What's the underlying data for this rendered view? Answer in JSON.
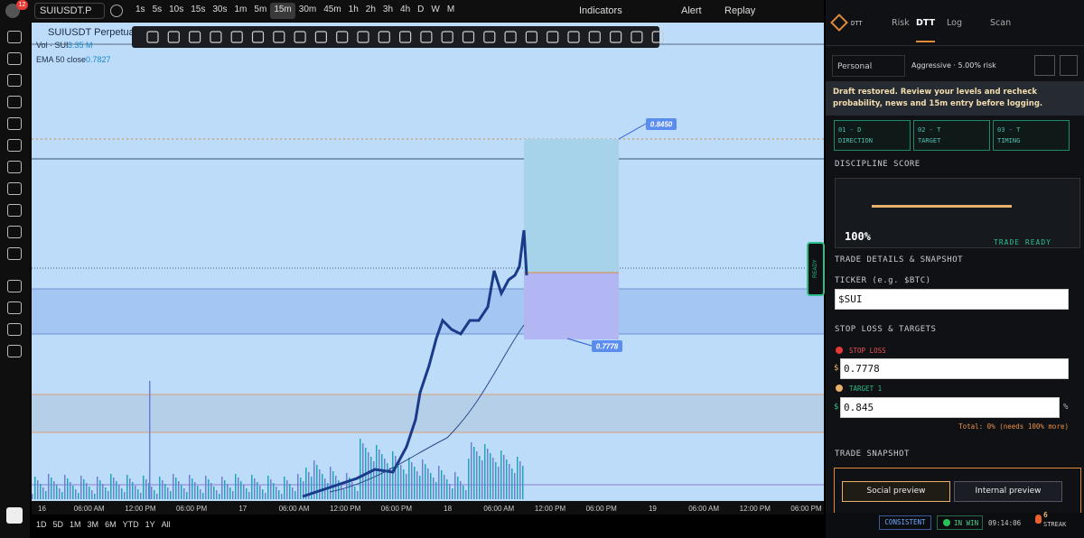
{
  "toolbar": {
    "symbol": "SUIUSDT.P",
    "badge": "12",
    "intervals": [
      "1s",
      "5s",
      "10s",
      "15s",
      "30s",
      "1m",
      "5m",
      "15m",
      "30m",
      "45m",
      "1h",
      "2h",
      "3h",
      "4h",
      "D",
      "W",
      "M"
    ],
    "active_interval": "15m",
    "indicators": "Indicators",
    "alert": "Alert",
    "replay": "Replay"
  },
  "legend": {
    "title": "SUIUSDT Perpetual C",
    "vol_label": "Vol · SUI",
    "vol_value": "3.35 M",
    "ema_label": "EMA 50 close",
    "ema_value": "0.7827"
  },
  "chart": {
    "target_label": "0.8450",
    "stop_label": "0.7778"
  },
  "time_axis": [
    "16",
    "06:00 AM",
    "12:00 PM",
    "06:00 PM",
    "17",
    "06:00 AM",
    "12:00 PM",
    "06:00 PM",
    "18",
    "06:00 AM",
    "12:00 PM",
    "06:00 PM",
    "19",
    "06:00 AM",
    "12:00 PM",
    "06:00 PM"
  ],
  "ranges": [
    "1D",
    "5D",
    "1M",
    "3M",
    "6M",
    "YTD",
    "1Y",
    "All"
  ],
  "panel": {
    "brand": "DTT",
    "tabs": [
      "Risk",
      "DTT",
      "Log",
      "Scan"
    ],
    "active_tab": "DTT",
    "profile": "Personal",
    "risk": "Aggressive · 5.00% risk",
    "banner": "Draft restored. Review your levels and recheck probability, news and 15m entry before logging.",
    "steps": [
      {
        "code": "01 - D",
        "label": "DIRECTION"
      },
      {
        "code": "02 - T",
        "label": "TARGET"
      },
      {
        "code": "03 - T",
        "label": "TIMING"
      }
    ],
    "discipline_title": "DISCIPLINE SCORE",
    "score": "100%",
    "status": "TRADE READY",
    "details_title": "TRADE DETAILS & SNAPSHOT",
    "ticker_label": "TICKER (e.g. $BTC)",
    "ticker": "$SUI",
    "sl_title": "STOP LOSS & TARGETS",
    "stop_label": "STOP LOSS",
    "currency": "$",
    "stop_value": "0.7778",
    "target_label": "TARGET 1",
    "target_value": "0.845",
    "percent": "%",
    "total": "Total: 0% (needs 100% more)",
    "snapshot_title": "TRADE SNAPSHOT",
    "social": "Social preview",
    "internal": "Internal preview",
    "ready_tab": "READY",
    "footer": {
      "consistent": "CONSISTENT",
      "in_win": "IN WIN",
      "time": "09:14:06",
      "streak_count": "6",
      "streak": "STREAK"
    }
  }
}
